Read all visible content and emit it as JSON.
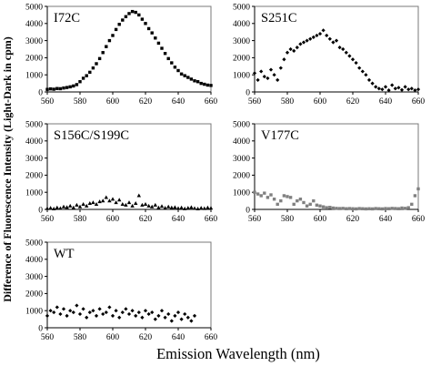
{
  "figure": {
    "xlabel": "Emission Wavelength (nm)",
    "ylabel": "Difference of Fluorescence Intensity (Light-Dark in cpm)"
  },
  "chart_data": [
    {
      "type": "scatter",
      "panel_label": "I72C",
      "marker": "square",
      "xlim": [
        560,
        660
      ],
      "ylim": [
        0,
        5000
      ],
      "x_ticks": [
        560,
        580,
        600,
        620,
        640,
        660
      ],
      "y_ticks": [
        0,
        1000,
        2000,
        3000,
        4000,
        5000
      ],
      "grid": false,
      "series": [
        {
          "x": [
            560,
            562,
            564,
            566,
            568,
            570,
            572,
            574,
            576,
            578,
            580,
            582,
            584,
            586,
            588,
            590,
            592,
            594,
            596,
            598,
            600,
            602,
            604,
            606,
            608,
            610,
            612,
            614,
            616,
            618,
            620,
            622,
            624,
            626,
            628,
            630,
            632,
            634,
            636,
            638,
            640,
            642,
            644,
            646,
            648,
            650,
            652,
            654,
            656,
            658,
            660
          ],
          "y": [
            150,
            180,
            160,
            200,
            190,
            230,
            260,
            300,
            350,
            430,
            600,
            800,
            950,
            1150,
            1400,
            1650,
            1950,
            2300,
            2650,
            3000,
            3300,
            3650,
            3950,
            4200,
            4400,
            4580,
            4700,
            4650,
            4500,
            4250,
            4000,
            3700,
            3450,
            3150,
            2850,
            2550,
            2250,
            1950,
            1700,
            1450,
            1250,
            1050,
            950,
            850,
            750,
            650,
            600,
            500,
            450,
            400,
            380
          ]
        }
      ]
    },
    {
      "type": "scatter",
      "panel_label": "S251C",
      "marker": "diamond",
      "xlim": [
        560,
        660
      ],
      "ylim": [
        0,
        5000
      ],
      "x_ticks": [
        560,
        580,
        600,
        620,
        640,
        660
      ],
      "y_ticks": [
        0,
        1000,
        2000,
        3000,
        4000,
        5000
      ],
      "grid": false,
      "series": [
        {
          "x": [
            560,
            562,
            564,
            566,
            568,
            570,
            572,
            574,
            576,
            578,
            580,
            582,
            584,
            586,
            588,
            590,
            592,
            594,
            596,
            598,
            600,
            602,
            604,
            606,
            608,
            610,
            612,
            614,
            616,
            618,
            620,
            622,
            624,
            626,
            628,
            630,
            632,
            634,
            636,
            638,
            640,
            642,
            644,
            646,
            648,
            650,
            652,
            654,
            656,
            658,
            660
          ],
          "y": [
            1100,
            700,
            1200,
            900,
            800,
            1300,
            1000,
            700,
            1400,
            1900,
            2300,
            2500,
            2400,
            2600,
            2800,
            2900,
            3000,
            3100,
            3200,
            3300,
            3400,
            3600,
            3300,
            3100,
            2900,
            3000,
            2600,
            2500,
            2300,
            2100,
            1900,
            1700,
            1400,
            1200,
            1000,
            700,
            500,
            300,
            200,
            150,
            300,
            100,
            400,
            200,
            250,
            120,
            300,
            150,
            200,
            100,
            150
          ]
        }
      ]
    },
    {
      "type": "scatter",
      "panel_label": "S156C/S199C",
      "marker": "triangle",
      "xlim": [
        560,
        660
      ],
      "ylim": [
        0,
        5000
      ],
      "x_ticks": [
        560,
        580,
        600,
        620,
        640,
        660
      ],
      "y_ticks": [
        0,
        1000,
        2000,
        3000,
        4000,
        5000
      ],
      "grid": false,
      "series": [
        {
          "x": [
            560,
            562,
            564,
            566,
            568,
            570,
            572,
            574,
            576,
            578,
            580,
            582,
            584,
            586,
            588,
            590,
            592,
            594,
            596,
            598,
            600,
            602,
            604,
            606,
            608,
            610,
            612,
            614,
            616,
            618,
            620,
            622,
            624,
            626,
            628,
            630,
            632,
            634,
            636,
            638,
            640,
            642,
            644,
            646,
            648,
            650,
            652,
            654,
            656,
            658,
            660
          ],
          "y": [
            50,
            80,
            30,
            100,
            60,
            150,
            120,
            200,
            100,
            250,
            150,
            300,
            200,
            350,
            400,
            300,
            450,
            500,
            700,
            500,
            600,
            400,
            550,
            300,
            250,
            400,
            200,
            350,
            800,
            250,
            300,
            200,
            150,
            250,
            100,
            180,
            80,
            150,
            100,
            120,
            60,
            100,
            40,
            80,
            120,
            60,
            30,
            80,
            50,
            100,
            70
          ]
        }
      ]
    },
    {
      "type": "scatter",
      "panel_label": "V177C",
      "marker": "square-gray",
      "xlim": [
        560,
        660
      ],
      "ylim": [
        0,
        5000
      ],
      "x_ticks": [
        560,
        580,
        600,
        620,
        640,
        660
      ],
      "y_ticks": [
        0,
        1000,
        2000,
        3000,
        4000,
        5000
      ],
      "grid": false,
      "series": [
        {
          "x": [
            560,
            562,
            564,
            566,
            568,
            570,
            572,
            574,
            576,
            578,
            580,
            582,
            584,
            586,
            588,
            590,
            592,
            594,
            596,
            598,
            600,
            602,
            604,
            606,
            608,
            610,
            612,
            614,
            616,
            618,
            620,
            622,
            624,
            626,
            628,
            630,
            632,
            634,
            636,
            638,
            640,
            642,
            644,
            646,
            648,
            650,
            652,
            654,
            656,
            658,
            660
          ],
          "y": [
            1000,
            900,
            800,
            950,
            700,
            850,
            600,
            300,
            500,
            800,
            750,
            700,
            300,
            500,
            600,
            400,
            200,
            300,
            500,
            250,
            200,
            150,
            100,
            120,
            80,
            60,
            50,
            60,
            40,
            50,
            40,
            30,
            50,
            40,
            30,
            40,
            30,
            50,
            40,
            30,
            50,
            40,
            60,
            50,
            40,
            80,
            60,
            100,
            300,
            800,
            1200
          ]
        }
      ]
    },
    {
      "type": "scatter",
      "panel_label": "WT",
      "marker": "diamond",
      "xlim": [
        560,
        660
      ],
      "ylim": [
        0,
        5000
      ],
      "x_ticks": [
        560,
        580,
        600,
        620,
        640,
        660
      ],
      "y_ticks": [
        0,
        1000,
        2000,
        3000,
        4000,
        5000
      ],
      "grid": false,
      "series": [
        {
          "x": [
            560,
            562,
            564,
            566,
            568,
            570,
            572,
            574,
            576,
            578,
            580,
            582,
            584,
            586,
            588,
            590,
            592,
            594,
            596,
            598,
            600,
            602,
            604,
            606,
            608,
            610,
            612,
            614,
            616,
            618,
            620,
            622,
            624,
            626,
            628,
            630,
            632,
            634,
            636,
            638,
            640,
            642,
            644,
            646,
            648,
            650
          ],
          "y": [
            700,
            1000,
            900,
            1200,
            800,
            1100,
            700,
            1000,
            900,
            1300,
            800,
            1100,
            600,
            900,
            1000,
            700,
            1100,
            800,
            900,
            1200,
            700,
            1000,
            600,
            900,
            1100,
            800,
            1000,
            700,
            900,
            600,
            1000,
            800,
            900,
            500,
            700,
            1000,
            600,
            800,
            400,
            700,
            900,
            500,
            800,
            600,
            400,
            700
          ]
        }
      ]
    }
  ]
}
